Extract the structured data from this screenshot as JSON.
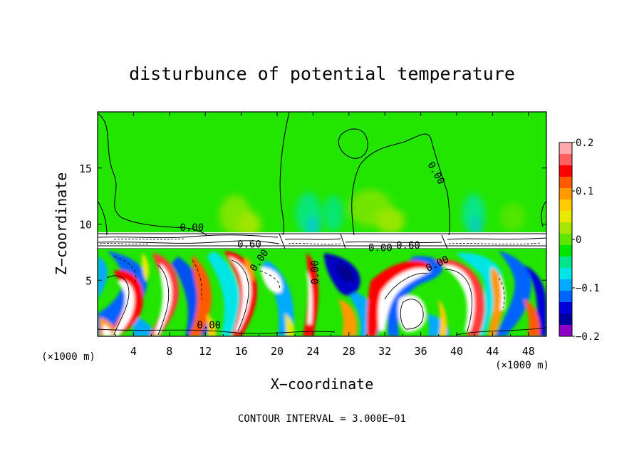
{
  "chart_data": {
    "type": "heatmap",
    "title": "disturbunce of potential temperature",
    "xlabel": "X−coordinate",
    "ylabel": "Z−coordinate",
    "x_unit": "(×1000 m)",
    "x_unit_right": "(×1000 m)",
    "footer": "CONTOUR INTERVAL = 3.000E−01",
    "xlim": [
      0,
      50
    ],
    "ylim": [
      0,
      20
    ],
    "x_ticks": [
      4,
      8,
      12,
      16,
      20,
      24,
      28,
      32,
      36,
      40,
      44,
      48
    ],
    "y_ticks": [
      5,
      10,
      15
    ],
    "x_tick_labels": [
      "4",
      "8",
      "12",
      "16",
      "20",
      "24",
      "28",
      "32",
      "36",
      "40",
      "44",
      "48"
    ],
    "y_tick_labels": [
      "5",
      "10",
      "15"
    ],
    "colorbar": {
      "min": -0.2,
      "max": 0.2,
      "ticks": [
        0.2,
        0.1,
        0,
        -0.1,
        -0.2
      ],
      "tick_labels": [
        "0.2",
        "0.1",
        "0",
        "−0.1",
        "−0.2"
      ],
      "colors": [
        "#ffaaaa",
        "#ff6060",
        "#ff0000",
        "#ff5a00",
        "#ff9900",
        "#ffcc00",
        "#e8e800",
        "#a8e600",
        "#5ee600",
        "#00e600",
        "#00e68c",
        "#00e6e6",
        "#00aaff",
        "#0064ff",
        "#0000dc",
        "#0000a0",
        "#8c00c8"
      ]
    },
    "contour_labels": [
      {
        "text": "0.00",
        "x": 10.5,
        "z": 9.4,
        "rot": 0
      },
      {
        "text": "0.60",
        "x": 16.9,
        "z": 7.9,
        "rot": 0
      },
      {
        "text": "0.00",
        "x": 18.3,
        "z": 6.6,
        "rot": -55
      },
      {
        "text": "0.00",
        "x": 24.6,
        "z": 5.7,
        "rot": -90
      },
      {
        "text": "0.00",
        "x": 31.5,
        "z": 7.6,
        "rot": 0
      },
      {
        "text": "0.60",
        "x": 34.6,
        "z": 7.8,
        "rot": 0
      },
      {
        "text": "0.00",
        "x": 38.0,
        "z": 6.2,
        "rot": -25
      },
      {
        "text": "0.00",
        "x": 37.4,
        "z": 14.4,
        "rot": 60
      },
      {
        "text": "0.00",
        "x": 12.4,
        "z": 0.7,
        "rot": 0
      }
    ]
  }
}
